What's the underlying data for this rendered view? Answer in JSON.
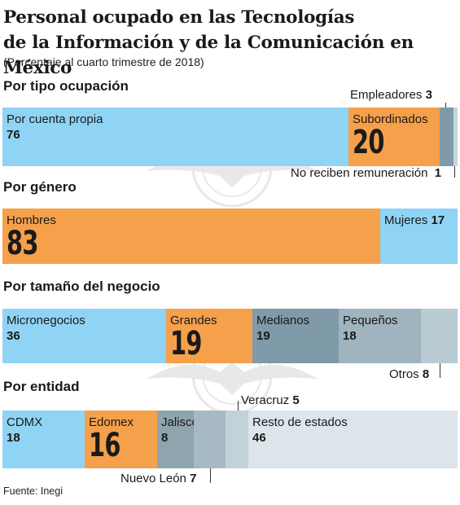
{
  "title_line1": "Personal ocupado en las Tecnologías",
  "title_line2": "de la Información y de la Comunicación en México",
  "subtitle": "(Porcentaje al cuarto trimestre de 2018)",
  "source": "Fuente: Inegi",
  "colors": {
    "light_blue": "#8fd4f4",
    "orange": "#f5a04b",
    "slate": "#7f9aa8",
    "gray_blue": "#b3c8d1",
    "pale": "#d6e1e6",
    "pale_light": "#dbe5ea"
  },
  "chart_data": [
    {
      "type": "bar",
      "orientation": "horizontal-stacked",
      "title": "Por tipo ocupación",
      "categories": [
        "Por cuenta propia",
        "Subordinados",
        "Empleadores",
        "No reciben remuneración"
      ],
      "values": [
        76,
        20,
        3,
        1
      ],
      "value_labels": [
        "76",
        "20",
        "3",
        "1"
      ]
    },
    {
      "type": "bar",
      "orientation": "horizontal-stacked",
      "title": "Por género",
      "categories": [
        "Hombres",
        "Mujeres"
      ],
      "values": [
        83,
        17
      ],
      "value_labels": [
        "83",
        "17"
      ]
    },
    {
      "type": "bar",
      "orientation": "horizontal-stacked",
      "title": "Por tamaño del negocio",
      "categories": [
        "Micronegocios",
        "Grandes",
        "Medianos",
        "Pequeños",
        "Otros"
      ],
      "values": [
        36,
        19,
        19,
        18,
        8
      ],
      "value_labels": [
        "36",
        "19",
        "19",
        "18",
        "8"
      ]
    },
    {
      "type": "bar",
      "orientation": "horizontal-stacked",
      "title": "Por entidad",
      "categories": [
        "CDMX",
        "Edomex",
        "Jalisco",
        "Nuevo León",
        "Veracruz",
        "Resto de estados"
      ],
      "values": [
        18,
        16,
        8,
        7,
        5,
        46
      ],
      "value_labels": [
        "18",
        "16",
        "8",
        "7",
        "5",
        "46"
      ]
    }
  ]
}
